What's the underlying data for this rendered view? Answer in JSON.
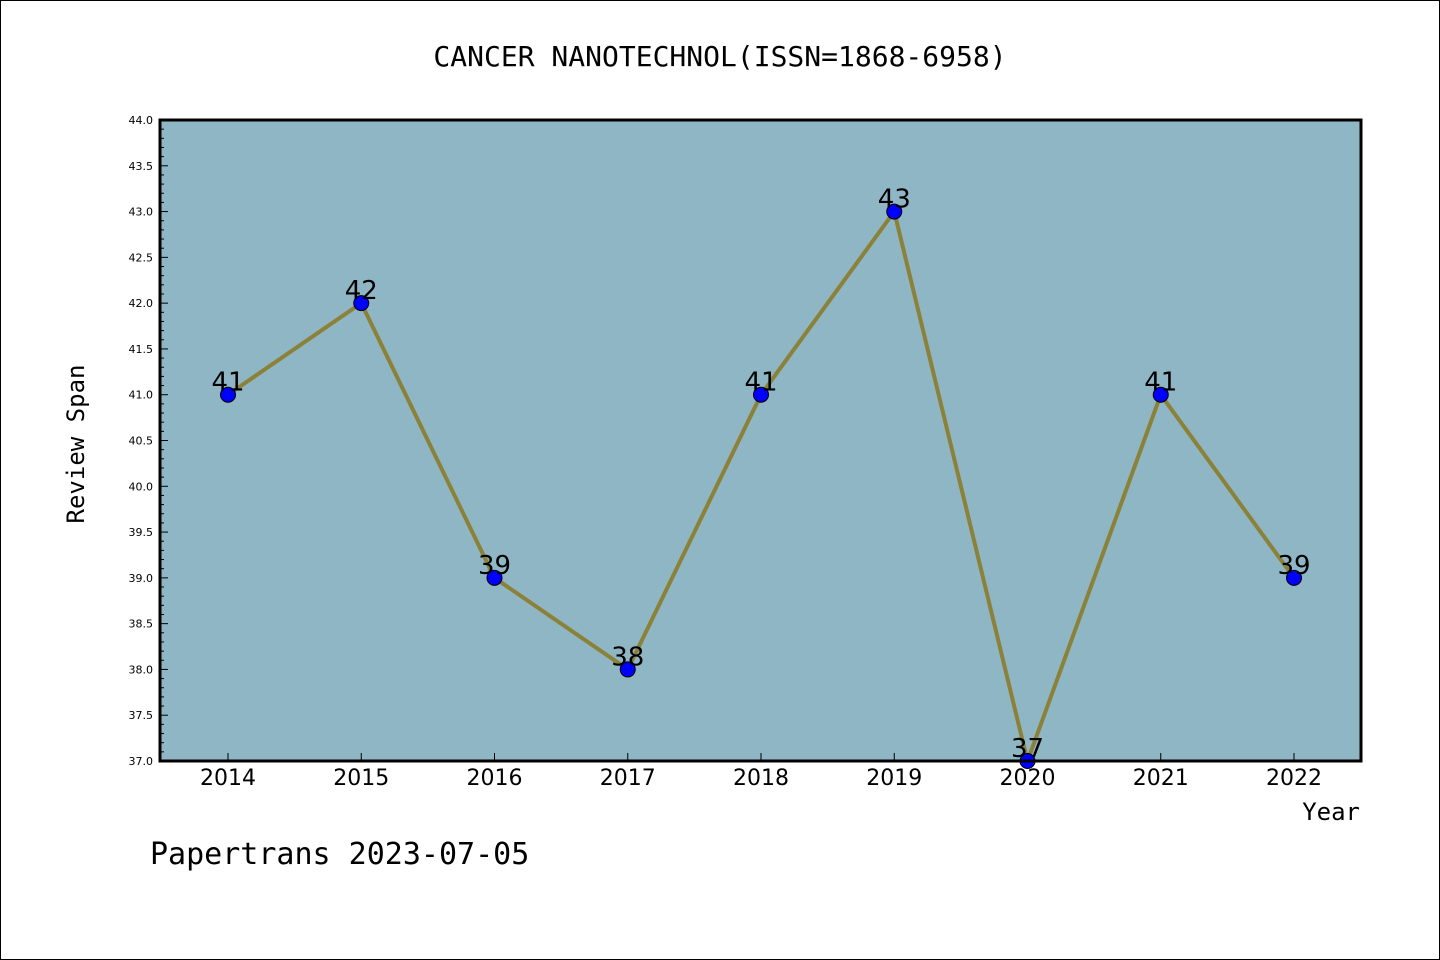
{
  "chart_data": {
    "type": "line",
    "title": "CANCER NANOTECHNOL(ISSN=1868-6958)",
    "xlabel": "Year",
    "ylabel": "Review Span",
    "categories": [
      "2014",
      "2015",
      "2016",
      "2017",
      "2018",
      "2019",
      "2020",
      "2021",
      "2022"
    ],
    "series": [
      {
        "values": [
          41,
          42,
          39,
          38,
          41,
          43,
          37,
          41,
          39
        ]
      }
    ],
    "data_labels": [
      "41",
      "42",
      "39",
      "38",
      "41",
      "43",
      "37",
      "41",
      "39"
    ],
    "ylim": [
      37.0,
      44.0
    ],
    "yticks": [
      "37.0",
      "37.5",
      "38.0",
      "38.5",
      "39.0",
      "39.5",
      "40.0",
      "40.5",
      "41.0",
      "41.5",
      "42.0",
      "42.5",
      "43.0",
      "43.5",
      "44.0"
    ],
    "grid": false,
    "legend": "none",
    "colors": {
      "plot_background": "#8fb6c4",
      "line": "#8b8139",
      "marker": "#0000ff"
    },
    "footer": "Papertrans 2023-07-05"
  }
}
